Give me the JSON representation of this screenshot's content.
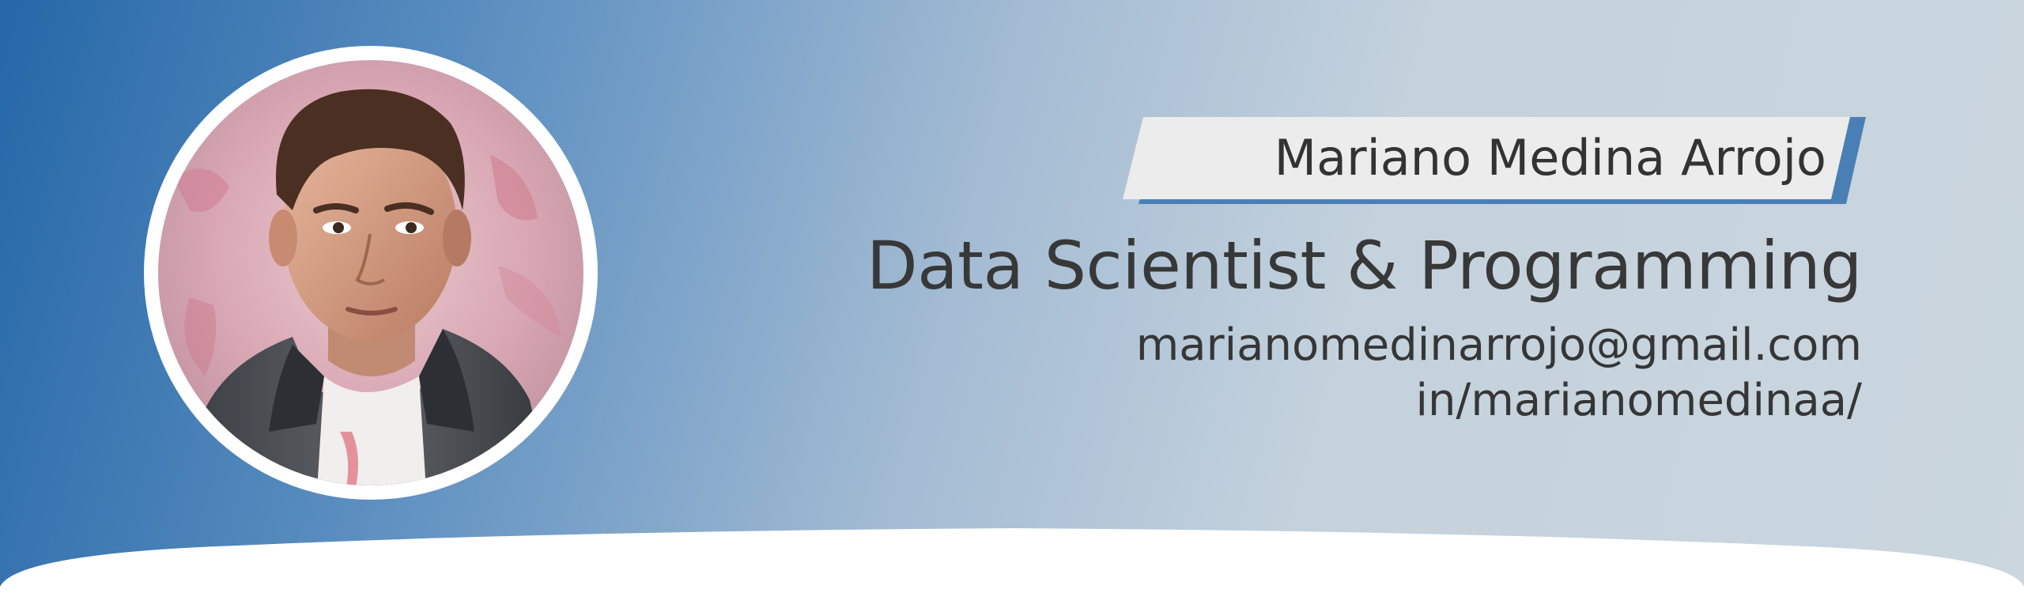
{
  "profile": {
    "name": "Mariano Medina Arrojo",
    "title": "Data Scientist & Programming",
    "email": "marianomedinarrojo@gmail.com",
    "linkedin": "in/marianomedinaa/"
  },
  "portrait": {
    "icon": "person-portrait"
  },
  "colors": {
    "gradient_start": "#2567a8",
    "gradient_end": "#cbd6de",
    "name_tag_fill": "#ececec",
    "name_tag_accent": "#4a7fb5",
    "text": "#363636",
    "bottom_band": "#ffffff"
  }
}
